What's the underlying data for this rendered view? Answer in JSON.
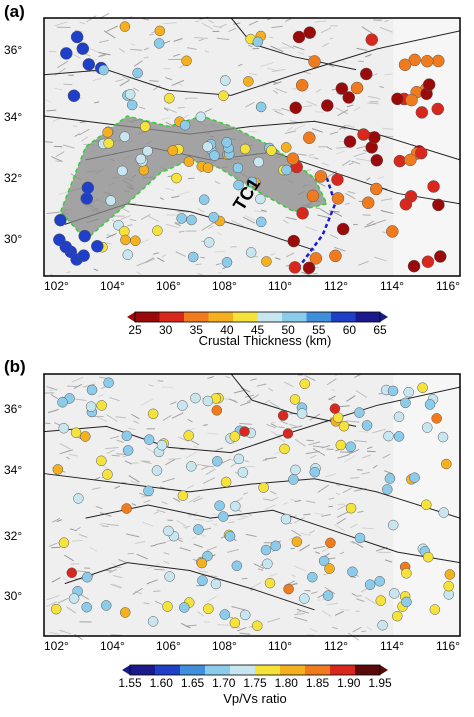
{
  "panels": [
    {
      "letter": "(a)",
      "xticks": [
        "102°",
        "104°",
        "106°",
        "108°",
        "110°",
        "112°",
        "114°",
        "116°"
      ],
      "yticks": [
        "36°",
        "34°",
        "32°",
        "30°"
      ],
      "annotation": "TC1",
      "colorbar": {
        "title": "Crustal Thickness (km)",
        "ticks": [
          "25",
          "30",
          "35",
          "40",
          "45",
          "50",
          "55",
          "60",
          "65"
        ],
        "colors": [
          "#9b0a0a",
          "#d8281e",
          "#f07a1e",
          "#f5b020",
          "#f5e23a",
          "#c8e6f0",
          "#8ccbea",
          "#3f8fdc",
          "#1f3fc8",
          "#1a1a8c"
        ]
      }
    },
    {
      "letter": "(b)",
      "xticks": [
        "102°",
        "104°",
        "106°",
        "108°",
        "110°",
        "112°",
        "114°",
        "116°"
      ],
      "yticks": [
        "36°",
        "34°",
        "32°",
        "30°"
      ],
      "colorbar": {
        "title": "Vp/Vs ratio",
        "ticks": [
          "1.55",
          "1.60",
          "1.65",
          "1.70",
          "1.75",
          "1.80",
          "1.85",
          "1.90",
          "1.95"
        ],
        "colors": [
          "#1a1a8c",
          "#1f3fc8",
          "#3f8fdc",
          "#8ccbea",
          "#c8e6f0",
          "#f5e23a",
          "#f5b020",
          "#f07a1e",
          "#d8281e",
          "#5a0a0a"
        ]
      }
    }
  ]
}
